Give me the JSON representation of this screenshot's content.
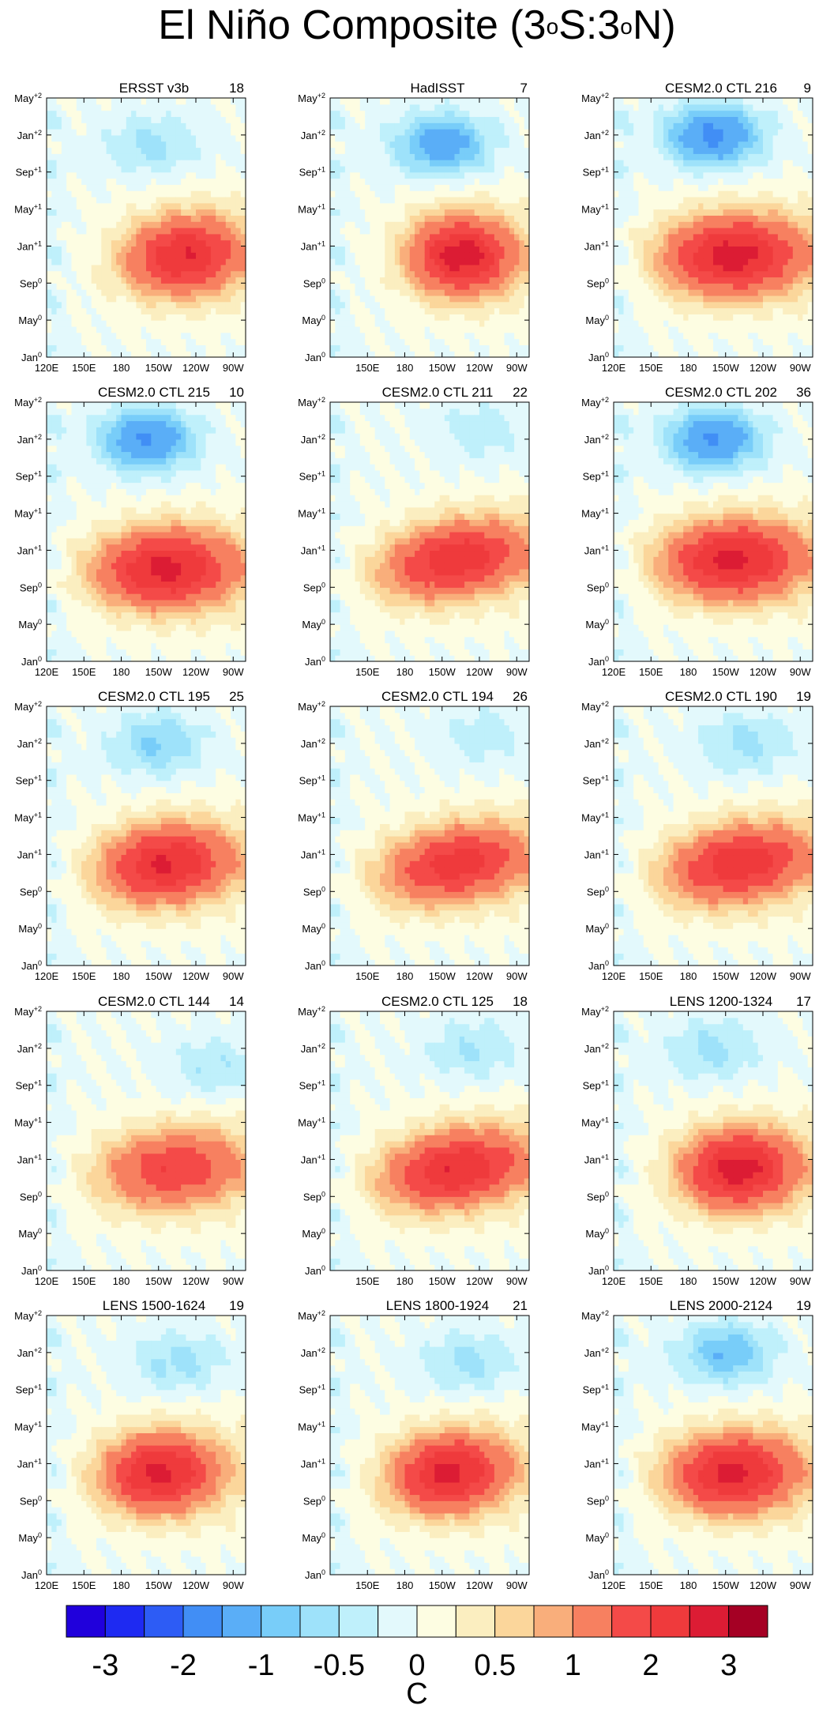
{
  "title": {
    "prefix": "El Niño Composite (3",
    "sup1": "o",
    "mid": "S:3",
    "sup2": "o",
    "suffix": "N)"
  },
  "chart_data": {
    "type": "heatmap",
    "description_axes": "Hovmoller: longitude (x) vs time (y)",
    "x_ticks": [
      "120E",
      "150E",
      "180",
      "150W",
      "120W",
      "90W"
    ],
    "x_range_deg": [
      120,
      280
    ],
    "y_ticks": [
      {
        "base": "Jan",
        "sup": "0"
      },
      {
        "base": "May",
        "sup": "0"
      },
      {
        "base": "Sep",
        "sup": "0"
      },
      {
        "base": "Jan",
        "sup": "+1"
      },
      {
        "base": "May",
        "sup": "+1"
      },
      {
        "base": "Sep",
        "sup": "+1"
      },
      {
        "base": "Jan",
        "sup": "+2"
      },
      {
        "base": "May",
        "sup": "+2"
      }
    ],
    "y_range_months": [
      0,
      28
    ],
    "panels": [
      {
        "name": "ERSST v3b",
        "count": "18",
        "pos_amp": 2.3,
        "neg_amp": 0.6,
        "center_month": 11,
        "center_lon": 230,
        "neg_month": 23,
        "neg_lon": 205,
        "tilt": 0.1,
        "warm_spread": 45,
        "show_xlabel_120E": true
      },
      {
        "name": "HadISST",
        "count": "7",
        "pos_amp": 2.6,
        "neg_amp": 1.3,
        "center_month": 11,
        "center_lon": 225,
        "neg_month": 23,
        "neg_lon": 210,
        "tilt": 0.0,
        "warm_spread": 40,
        "show_xlabel_120E": false
      },
      {
        "name": "CESM2.0 CTL 216",
        "count": "9",
        "pos_amp": 2.6,
        "neg_amp": 1.6,
        "center_month": 11,
        "center_lon": 215,
        "neg_month": 24,
        "neg_lon": 200,
        "tilt": 0.05,
        "warm_spread": 55,
        "show_xlabel_120E": true
      },
      {
        "name": "CESM2.0 CTL 215",
        "count": "10",
        "pos_amp": 2.5,
        "neg_amp": 1.5,
        "center_month": 10,
        "center_lon": 215,
        "neg_month": 24,
        "neg_lon": 200,
        "tilt": 0.05,
        "warm_spread": 55,
        "show_xlabel_120E": true
      },
      {
        "name": "CESM2.0 CTL 211",
        "count": "22",
        "pos_amp": 2.2,
        "neg_amp": 0.4,
        "center_month": 11,
        "center_lon": 220,
        "neg_month": 25,
        "neg_lon": 240,
        "tilt": 0.35,
        "warm_spread": 55,
        "show_xlabel_120E": false
      },
      {
        "name": "CESM2.0 CTL 202",
        "count": "36",
        "pos_amp": 2.5,
        "neg_amp": 1.5,
        "center_month": 11,
        "center_lon": 215,
        "neg_month": 24,
        "neg_lon": 200,
        "tilt": 0.05,
        "warm_spread": 55,
        "show_xlabel_120E": true
      },
      {
        "name": "CESM2.0 CTL 195",
        "count": "25",
        "pos_amp": 2.4,
        "neg_amp": 0.8,
        "center_month": 11,
        "center_lon": 215,
        "neg_month": 24,
        "neg_lon": 210,
        "tilt": 0.15,
        "warm_spread": 50,
        "show_xlabel_120E": true
      },
      {
        "name": "CESM2.0 CTL 194",
        "count": "26",
        "pos_amp": 2.1,
        "neg_amp": 0.4,
        "center_month": 11,
        "center_lon": 220,
        "neg_month": 25,
        "neg_lon": 245,
        "tilt": 0.35,
        "warm_spread": 55,
        "show_xlabel_120E": false
      },
      {
        "name": "CESM2.0 CTL 190",
        "count": "19",
        "pos_amp": 2.2,
        "neg_amp": 0.6,
        "center_month": 11,
        "center_lon": 220,
        "neg_month": 24,
        "neg_lon": 225,
        "tilt": 0.3,
        "warm_spread": 55,
        "show_xlabel_120E": true
      },
      {
        "name": "CESM2.0 CTL 144",
        "count": "14",
        "pos_amp": 1.8,
        "neg_amp": 0.5,
        "center_month": 11,
        "center_lon": 220,
        "neg_month": 22,
        "neg_lon": 255,
        "tilt": 0.15,
        "warm_spread": 55,
        "show_xlabel_120E": true
      },
      {
        "name": "CESM2.0 CTL 125",
        "count": "18",
        "pos_amp": 2.3,
        "neg_amp": 0.5,
        "center_month": 11,
        "center_lon": 220,
        "neg_month": 24,
        "neg_lon": 235,
        "tilt": 0.3,
        "warm_spread": 55,
        "show_xlabel_120E": false
      },
      {
        "name": "LENS 1200-1324",
        "count": "17",
        "pos_amp": 2.6,
        "neg_amp": 0.6,
        "center_month": 11,
        "center_lon": 220,
        "neg_month": 24,
        "neg_lon": 200,
        "tilt": 0.05,
        "warm_spread": 45,
        "show_xlabel_120E": true
      },
      {
        "name": "LENS 1500-1624",
        "count": "19",
        "pos_amp": 2.5,
        "neg_amp": 0.6,
        "center_month": 11,
        "center_lon": 210,
        "neg_month": 23,
        "neg_lon": 225,
        "tilt": 0.05,
        "warm_spread": 45,
        "show_xlabel_120E": true
      },
      {
        "name": "LENS 1800-1924",
        "count": "21",
        "pos_amp": 2.5,
        "neg_amp": 0.6,
        "center_month": 11,
        "center_lon": 215,
        "neg_month": 23,
        "neg_lon": 230,
        "tilt": 0.1,
        "warm_spread": 45,
        "show_xlabel_120E": false
      },
      {
        "name": "LENS 2000-2124",
        "count": "19",
        "pos_amp": 2.5,
        "neg_amp": 1.0,
        "center_month": 11,
        "center_lon": 215,
        "neg_month": 24,
        "neg_lon": 210,
        "tilt": 0.05,
        "warm_spread": 50,
        "show_xlabel_120E": true
      }
    ],
    "colorbar": {
      "levels": [
        -3,
        -2.5,
        -2,
        -1.5,
        -1,
        -0.75,
        -0.5,
        -0.25,
        0,
        0.25,
        0.5,
        0.75,
        1,
        1.5,
        2,
        2.5,
        3
      ],
      "colors": [
        "#2000dc",
        "#1e2af2",
        "#2d5cf5",
        "#418ef5",
        "#5aaef7",
        "#78cdf9",
        "#9ee2fa",
        "#bff0fb",
        "#e3f9fc",
        "#fdfde2",
        "#fbeec0",
        "#fbd69b",
        "#f9ae7b",
        "#f78060",
        "#f44a48",
        "#ef3a3c",
        "#dc1c34",
        "#a50024"
      ],
      "tick_labels": [
        "-3",
        "-2",
        "-1",
        "-0.5",
        "0",
        "0.5",
        "1",
        "2",
        "3"
      ],
      "tick_values": [
        -3,
        -2,
        -1,
        -0.5,
        0,
        0.5,
        1,
        2,
        3
      ],
      "units": "C"
    }
  }
}
